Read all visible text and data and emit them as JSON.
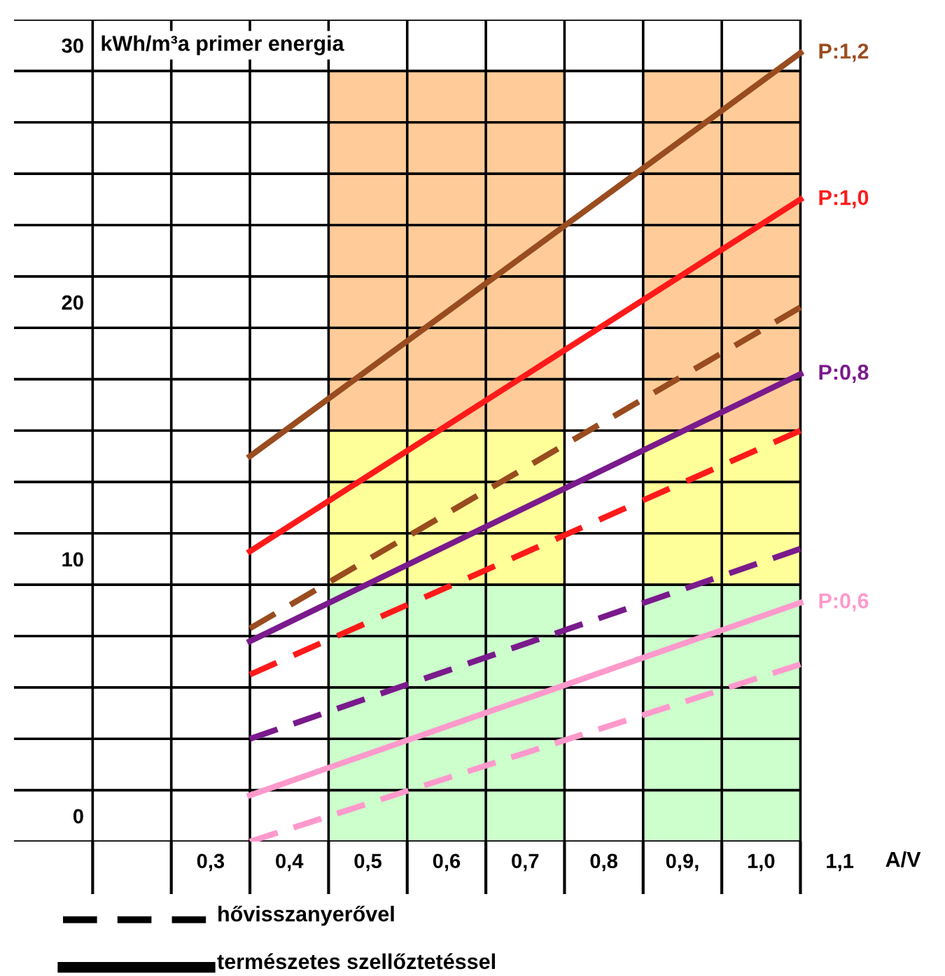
{
  "chart_data": {
    "type": "line",
    "ylabel": "kWh/m³a primer energia",
    "xlabel": "A/V",
    "xlim": [
      0.05,
      1.2
    ],
    "ylim": [
      -1,
      31
    ],
    "xticks": [
      {
        "value": 0.15,
        "label": null
      },
      {
        "value": 0.25,
        "label": null
      },
      {
        "value": 0.35,
        "label": null
      },
      {
        "value": 0.45,
        "label": null
      },
      {
        "value": 0.55,
        "label": null
      },
      {
        "value": 0.65,
        "label": null
      },
      {
        "value": 0.75,
        "label": null
      },
      {
        "value": 0.85,
        "label": null
      },
      {
        "value": 0.95,
        "label": null
      },
      {
        "value": 1.05,
        "label": null
      },
      {
        "value": 0.3,
        "label": "0,3"
      },
      {
        "value": 0.4,
        "label": "0,4"
      },
      {
        "value": 0.5,
        "label": "0,5"
      },
      {
        "value": 0.6,
        "label": "0,6"
      },
      {
        "value": 0.7,
        "label": "0,7"
      },
      {
        "value": 0.8,
        "label": "0,8"
      },
      {
        "value": 0.9,
        "label": "0,9,"
      },
      {
        "value": 1.0,
        "label": "1,0"
      },
      {
        "value": 1.1,
        "label": "1,1"
      }
    ],
    "yticks": [
      0,
      10,
      20,
      30,
      {
        "value": -1,
        "label": null
      },
      {
        "value": 1,
        "label": null
      },
      {
        "value": 3,
        "label": null
      },
      {
        "value": 5,
        "label": null
      },
      {
        "value": 7,
        "label": null
      },
      {
        "value": 9,
        "label": null
      },
      {
        "value": 11,
        "label": null
      },
      {
        "value": 13,
        "label": null
      },
      {
        "value": 15,
        "label": null
      },
      {
        "value": 17,
        "label": null
      },
      {
        "value": 19,
        "label": null
      },
      {
        "value": 21,
        "label": null
      },
      {
        "value": 23,
        "label": null
      },
      {
        "value": 25,
        "label": null
      },
      {
        "value": 27,
        "label": null
      },
      {
        "value": 29,
        "label": null
      },
      {
        "value": 31,
        "label": null
      }
    ],
    "grid": true,
    "series": [
      {
        "type": "bar",
        "color": "#ccffcc",
        "x": [
          0.5,
          0.6,
          0.7,
          0.9,
          1.0
        ],
        "base": [
          -1,
          -1,
          -1,
          -1,
          -1
        ],
        "values": [
          10,
          10,
          10,
          10,
          10
        ]
      },
      {
        "type": "bar",
        "color": "#ffff99",
        "x": [
          0.5,
          0.6,
          0.7,
          0.9,
          1.0
        ],
        "base": [
          9,
          9,
          9,
          9,
          9
        ],
        "values": [
          6,
          6,
          6,
          6,
          6
        ]
      },
      {
        "type": "bar",
        "color": "#ffcc99",
        "x": [
          0.5,
          0.6,
          0.7,
          0.9,
          1.0
        ],
        "base": [
          15,
          15,
          15,
          15,
          15
        ],
        "values": [
          14,
          14,
          14,
          14,
          14
        ]
      },
      {
        "color": "#994c1f",
        "line_style": "dashed",
        "x": [
          0.35,
          1.05
        ],
        "values": [
          7.3,
          19.8
        ]
      },
      {
        "color": "#ff1a1a",
        "line_style": "dashed",
        "x": [
          0.35,
          1.05
        ],
        "values": [
          5.5,
          15.0
        ]
      },
      {
        "color": "#7a1a8c",
        "line_style": "dashed",
        "x": [
          0.35,
          1.05
        ],
        "values": [
          3.0,
          10.4
        ]
      },
      {
        "color": "#ff99cc",
        "line_style": "dashed",
        "x": [
          0.35,
          1.05
        ],
        "values": [
          -1.0,
          5.9
        ]
      },
      {
        "name": "P:1,2",
        "color": "#994c1f",
        "line_style": "solid",
        "x": [
          0.35,
          1.05
        ],
        "values": [
          14.0,
          29.7
        ]
      },
      {
        "name": "P:1,0",
        "color": "#ff1a1a",
        "line_style": "solid",
        "x": [
          0.35,
          1.05
        ],
        "values": [
          10.3,
          24.0
        ]
      },
      {
        "name": "P:0,8",
        "color": "#7a1a8c",
        "line_style": "solid",
        "x": [
          0.35,
          1.05
        ],
        "values": [
          6.8,
          17.2
        ]
      },
      {
        "name": "P:0,6",
        "color": "#ff99cc",
        "line_style": "solid",
        "x": [
          0.35,
          1.05
        ],
        "values": [
          0.8,
          8.3
        ]
      }
    ],
    "annotations": [
      "hővisszanyerővel",
      "természetes szellőztetéssel"
    ]
  }
}
